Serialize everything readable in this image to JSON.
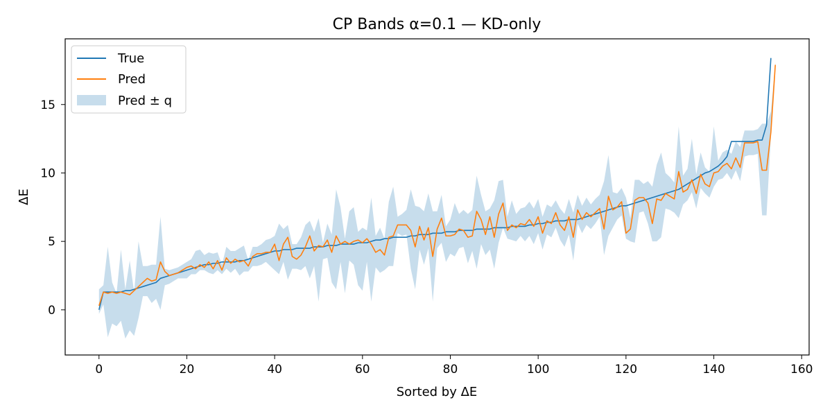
{
  "chart_data": {
    "type": "line",
    "title": "CP Bands α=0.1 — KD-only",
    "xlabel": "Sorted by ΔE",
    "ylabel": "ΔE",
    "xlim": [
      -7.7,
      161.7
    ],
    "ylim": [
      -3.3,
      19.8
    ],
    "xticks": [
      0,
      20,
      40,
      60,
      80,
      100,
      120,
      140,
      160
    ],
    "yticks": [
      0,
      5,
      10,
      15
    ],
    "grid": false,
    "legend_position": "top-left",
    "colors": {
      "true": "#1f77b4",
      "pred": "#ff7f0e",
      "band": "#1f77b4"
    },
    "band_opacity": 0.25,
    "series": [
      {
        "name": "True",
        "y": [
          0.0,
          1.3,
          1.3,
          1.3,
          1.3,
          1.3,
          1.4,
          1.4,
          1.5,
          1.6,
          1.7,
          1.8,
          1.9,
          2.0,
          2.3,
          2.4,
          2.5,
          2.6,
          2.7,
          2.8,
          2.9,
          3.0,
          3.1,
          3.2,
          3.3,
          3.3,
          3.4,
          3.4,
          3.5,
          3.5,
          3.5,
          3.5,
          3.6,
          3.6,
          3.7,
          3.8,
          3.9,
          4.0,
          4.1,
          4.2,
          4.3,
          4.3,
          4.4,
          4.4,
          4.4,
          4.5,
          4.5,
          4.5,
          4.5,
          4.6,
          4.6,
          4.6,
          4.7,
          4.7,
          4.7,
          4.8,
          4.8,
          4.8,
          4.8,
          4.9,
          4.9,
          4.9,
          5.0,
          5.1,
          5.1,
          5.2,
          5.2,
          5.3,
          5.3,
          5.3,
          5.3,
          5.4,
          5.4,
          5.5,
          5.5,
          5.5,
          5.6,
          5.6,
          5.6,
          5.7,
          5.7,
          5.7,
          5.8,
          5.8,
          5.8,
          5.8,
          5.9,
          5.9,
          5.9,
          5.9,
          6.0,
          6.0,
          6.0,
          6.0,
          6.1,
          6.1,
          6.1,
          6.1,
          6.2,
          6.2,
          6.3,
          6.3,
          6.4,
          6.4,
          6.5,
          6.5,
          6.5,
          6.6,
          6.6,
          6.6,
          6.7,
          6.8,
          6.9,
          7.0,
          7.1,
          7.2,
          7.3,
          7.4,
          7.5,
          7.6,
          7.6,
          7.7,
          7.8,
          7.9,
          8.0,
          8.1,
          8.2,
          8.3,
          8.4,
          8.5,
          8.6,
          8.7,
          8.8,
          9.0,
          9.2,
          9.4,
          9.6,
          9.8,
          10.0,
          10.1,
          10.3,
          10.5,
          10.8,
          11.2,
          12.3,
          12.3,
          12.3,
          12.3,
          12.3,
          12.3,
          12.4,
          12.4,
          13.5,
          18.4
        ]
      },
      {
        "name": "Pred",
        "y": [
          0.3,
          1.3,
          1.2,
          1.3,
          1.2,
          1.3,
          1.2,
          1.1,
          1.4,
          1.7,
          2.0,
          2.3,
          2.1,
          2.2,
          3.5,
          2.8,
          2.5,
          2.6,
          2.7,
          2.9,
          3.1,
          3.2,
          3.0,
          3.3,
          3.1,
          3.5,
          3.0,
          3.6,
          2.9,
          3.8,
          3.4,
          3.7,
          3.5,
          3.6,
          3.2,
          3.9,
          4.1,
          4.1,
          4.2,
          4.2,
          4.8,
          3.6,
          4.8,
          5.3,
          3.9,
          3.7,
          4.0,
          4.6,
          5.4,
          4.3,
          4.7,
          4.6,
          5.1,
          4.2,
          5.4,
          4.8,
          5.0,
          4.8,
          5.0,
          5.1,
          4.9,
          5.2,
          4.8,
          4.2,
          4.4,
          4.0,
          5.3,
          5.4,
          6.2,
          6.2,
          6.2,
          5.8,
          4.6,
          6.1,
          5.1,
          6.0,
          3.9,
          5.9,
          6.7,
          5.4,
          5.4,
          5.5,
          5.9,
          5.8,
          5.3,
          5.4,
          7.2,
          6.6,
          5.5,
          6.8,
          5.3,
          7.0,
          7.8,
          5.8,
          6.2,
          6.0,
          6.3,
          6.2,
          6.6,
          6.1,
          6.8,
          5.6,
          6.5,
          6.3,
          7.1,
          6.2,
          5.8,
          6.8,
          5.3,
          7.3,
          6.6,
          7.1,
          6.8,
          7.1,
          7.4,
          5.9,
          8.3,
          7.3,
          7.5,
          7.9,
          5.6,
          5.9,
          8.0,
          8.2,
          8.2,
          7.8,
          6.3,
          8.1,
          8.0,
          8.5,
          8.3,
          8.1,
          10.1,
          8.6,
          8.8,
          9.5,
          8.5,
          9.9,
          9.2,
          9.0,
          10.0,
          10.1,
          10.5,
          10.7,
          10.3,
          11.1,
          10.4,
          12.2,
          12.2,
          12.2,
          12.3,
          10.2,
          10.2,
          13.0,
          17.9
        ]
      }
    ],
    "band": {
      "name": "Pred ± q",
      "lower": [
        -0.3,
        0.4,
        -2.0,
        -1.0,
        -1.2,
        -0.8,
        -2.1,
        -1.5,
        -1.9,
        -0.6,
        1.0,
        1.0,
        0.5,
        0.8,
        0.0,
        1.8,
        1.9,
        2.1,
        2.3,
        2.3,
        2.3,
        2.6,
        2.6,
        2.9,
        2.9,
        2.7,
        2.6,
        2.9,
        2.6,
        3.0,
        2.7,
        3.0,
        2.5,
        2.8,
        2.8,
        3.2,
        3.2,
        3.3,
        3.5,
        3.2,
        2.9,
        2.6,
        3.5,
        2.2,
        3.0,
        3.0,
        2.9,
        3.2,
        2.3,
        3.2,
        0.6,
        3.7,
        3.8,
        2.0,
        1.5,
        3.5,
        1.2,
        3.6,
        3.3,
        1.8,
        1.4,
        3.5,
        0.6,
        3.1,
        2.7,
        2.9,
        3.2,
        3.2,
        5.6,
        5.4,
        5.5,
        3.0,
        1.5,
        4.4,
        3.3,
        4.5,
        0.6,
        4.5,
        4.9,
        3.5,
        4.1,
        3.9,
        4.5,
        4.6,
        3.4,
        4.3,
        3.0,
        4.8,
        4.0,
        4.4,
        3.0,
        4.9,
        6.0,
        5.2,
        5.1,
        5.0,
        5.4,
        5.0,
        5.4,
        4.8,
        5.6,
        4.4,
        5.5,
        5.3,
        6.0,
        5.1,
        4.6,
        5.5,
        3.6,
        6.3,
        5.6,
        6.2,
        5.9,
        6.3,
        6.8,
        4.0,
        5.4,
        6.0,
        6.6,
        6.9,
        5.2,
        5.0,
        4.9,
        7.1,
        7.2,
        6.3,
        5.0,
        5.0,
        5.3,
        7.4,
        7.3,
        7.1,
        6.7,
        7.7,
        8.0,
        8.6,
        7.4,
        8.9,
        8.5,
        8.2,
        9.0,
        9.5,
        9.6,
        10.0,
        9.5,
        10.2,
        9.4,
        11.2,
        11.3,
        11.3,
        11.4,
        6.9,
        6.9,
        12.7,
        17.5
      ],
      "upper": [
        1.5,
        1.8,
        4.6,
        2.0,
        1.2,
        4.4,
        1.5,
        3.6,
        1.3,
        5.0,
        3.2,
        3.2,
        3.3,
        3.3,
        6.8,
        3.0,
        2.9,
        3.0,
        3.1,
        3.3,
        3.5,
        3.7,
        4.3,
        4.4,
        4.0,
        4.2,
        4.1,
        4.2,
        3.3,
        4.6,
        4.3,
        4.3,
        4.5,
        4.7,
        3.6,
        4.6,
        4.6,
        4.8,
        5.1,
        5.2,
        5.4,
        6.3,
        5.9,
        6.2,
        4.8,
        4.8,
        5.3,
        6.2,
        6.5,
        5.7,
        6.7,
        4.9,
        6.3,
        5.5,
        8.8,
        7.5,
        5.2,
        7.2,
        7.5,
        5.7,
        6.0,
        5.8,
        8.2,
        5.4,
        6.0,
        5.2,
        7.9,
        9.0,
        6.8,
        7.0,
        7.3,
        8.8,
        7.6,
        7.5,
        7.2,
        8.5,
        7.2,
        7.2,
        8.4,
        6.1,
        6.6,
        7.8,
        7.0,
        7.3,
        7.0,
        7.3,
        9.8,
        8.4,
        7.2,
        7.4,
        8.0,
        9.4,
        9.5,
        6.8,
        8.0,
        7.0,
        7.4,
        7.5,
        7.9,
        7.4,
        8.1,
        6.8,
        7.7,
        7.5,
        8.0,
        7.4,
        7.0,
        8.1,
        7.1,
        8.4,
        7.6,
        8.2,
        7.7,
        8.1,
        8.4,
        9.4,
        11.3,
        8.6,
        8.5,
        8.9,
        8.2,
        6.7,
        9.5,
        9.5,
        9.2,
        9.4,
        9.0,
        10.6,
        11.5,
        10.0,
        9.7,
        9.3,
        13.4,
        9.8,
        10.3,
        12.5,
        9.9,
        11.5,
        10.4,
        10.1,
        13.4,
        10.9,
        11.5,
        11.7,
        11.4,
        12.3,
        11.9,
        13.1,
        13.1,
        13.1,
        13.2,
        13.6,
        13.6,
        14.5,
        18.1
      ]
    }
  }
}
